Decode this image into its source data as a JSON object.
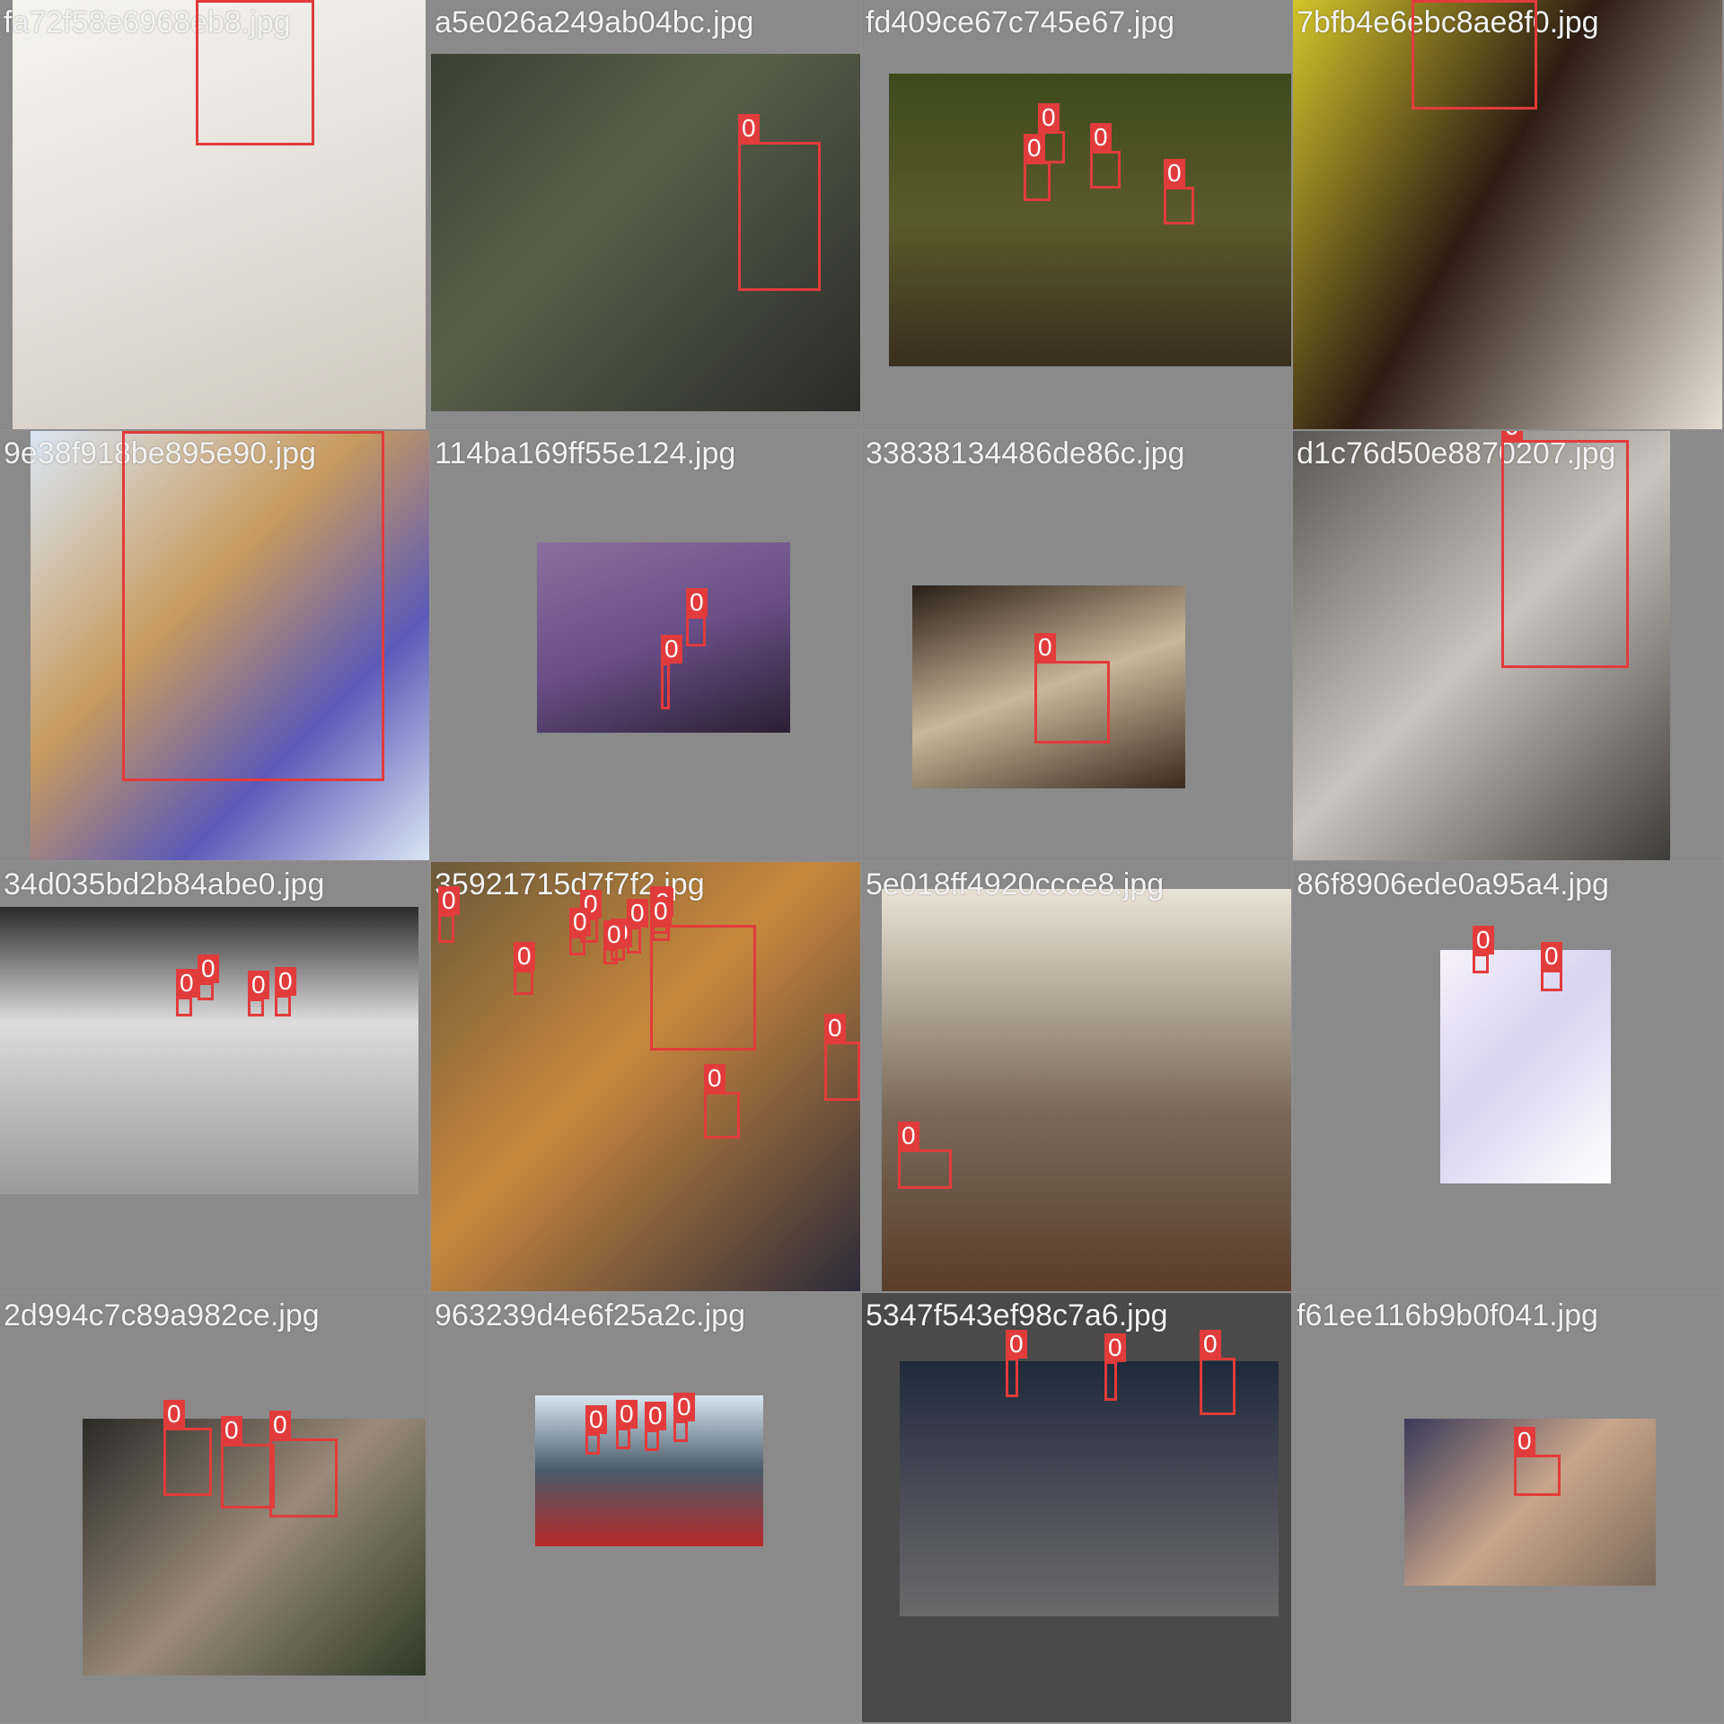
{
  "tiles": [
    {
      "filename": "fa72f58e6968eb8.jpg",
      "box_label": "0",
      "image_bg": "linear-gradient(160deg,#f5f5f0 0%,#e8e4de 40%,#cfc7bd 100%)",
      "boxes_count": 1
    },
    {
      "filename": "a5e026a249ab04bc.jpg",
      "box_label": "0",
      "image_bg": "linear-gradient(135deg,#3b3f33 0%,#59604a 40%,#2a2a28 100%)",
      "boxes_count": 1
    },
    {
      "filename": "fd409ce67c745e67.jpg",
      "box_label": "0",
      "image_bg": "linear-gradient(180deg,#3d4a1c 0%,#5b5a2a 50%,#3a2e20 100%)",
      "boxes_count": 4
    },
    {
      "filename": "7bfb4e6ebc8ae8f0.jpg",
      "box_label": "0",
      "image_bg": "linear-gradient(120deg,#d3c52a 0%,#2d1d14 45%,#e8e1d6 100%)",
      "boxes_count": 1
    },
    {
      "filename": "9e38f918be895e90.jpg",
      "box_label": "0",
      "image_bg": "linear-gradient(135deg,#d9e6f4 0%,#c89a5e 40%,#5c5ab8 70%,#d9e6f4 100%)",
      "boxes_count": 1
    },
    {
      "filename": "114ba169ff55e124.jpg",
      "box_label": "0",
      "image_bg": "linear-gradient(160deg,#8a6f9e 0%,#6a4f88 50%,#2a1f32 100%)",
      "boxes_count": 2
    },
    {
      "filename": "33838134486de86c.jpg",
      "box_label": "0",
      "image_bg": "linear-gradient(160deg,#2a1e16 0%,#c9b79a 50%,#3a2a1e 100%)",
      "boxes_count": 1
    },
    {
      "filename": "d1c76d50e8870207.jpg",
      "box_label": "0",
      "image_bg": "linear-gradient(135deg,#5a5754 0%,#c9c4bd 50%,#3e3c3a 100%)",
      "boxes_count": 1
    },
    {
      "filename": "34d035bd2b84abe0.jpg",
      "box_label": "0",
      "image_bg": "linear-gradient(180deg,#2a2a2a 0%,#dcdcdc 40%,#9a9a9a 100%)",
      "boxes_count": 4
    },
    {
      "filename": "35921715d7f7f2.jpg",
      "box_label": "0",
      "image_bg": "linear-gradient(135deg,#6b5a3a 0%,#c8873c 45%,#2c2a3a 100%)",
      "boxes_count": 12
    },
    {
      "filename": "5e018ff4920ccce8.jpg",
      "box_label": "0",
      "image_bg": "linear-gradient(180deg,#e9e3d6 0%,#7a6a5a 55%,#5a3e2a 100%)",
      "boxes_count": 1
    },
    {
      "filename": "86f8906ede0a95a4.jpg",
      "box_label": "0",
      "image_bg": "linear-gradient(135deg,#f6f2fb 0%,#d7d3f0 45%,#ffffff 100%)",
      "boxes_count": 2
    },
    {
      "filename": "2d994c7c89a982ce.jpg",
      "box_label": "0",
      "image_bg": "linear-gradient(135deg,#2a2a26 0%,#9a8a7a 50%,#2e3a26 100%)",
      "boxes_count": 3
    },
    {
      "filename": "963239d4e6f25a2c.jpg",
      "box_label": "0",
      "image_bg": "linear-gradient(180deg,#d7e6ef 0%,#4a5a6a 50%,#b72a2a 100%)",
      "boxes_count": 4
    },
    {
      "filename": "5347f543ef98c7a6.jpg",
      "box_label": "0",
      "image_bg": "linear-gradient(180deg,#1e2a3a 0%,#4a4a58 50%,#6a6a6a 100%)",
      "boxes_count": 3
    },
    {
      "filename": "f61ee116b9b0f041.jpg",
      "box_label": "0",
      "image_bg": "linear-gradient(135deg,#3a3a5a 0%,#c9a58a 50%,#7a6a5a 100%)",
      "boxes_count": 1
    }
  ],
  "colors": {
    "box": "#e23b3b",
    "label_text": "#ffffff",
    "filename_text": "#f2f2f2",
    "tile_bg": "#8a8a8a"
  }
}
